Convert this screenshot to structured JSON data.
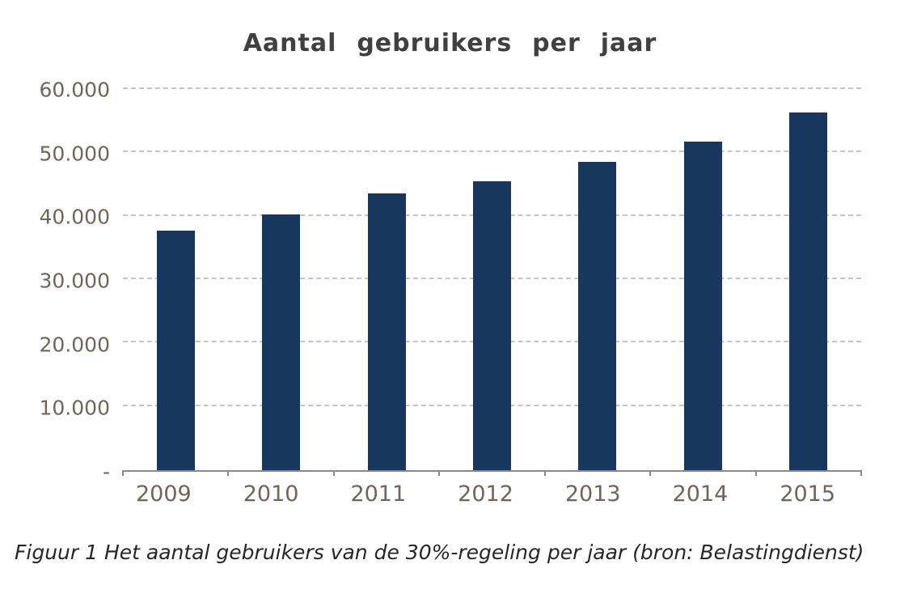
{
  "chart_data": {
    "type": "bar",
    "title": "Aantal gebruikers per jaar",
    "categories": [
      "2009",
      "2010",
      "2011",
      "2012",
      "2013",
      "2014",
      "2015"
    ],
    "values": [
      37800,
      40300,
      43700,
      45600,
      48700,
      51800,
      56400
    ],
    "xlabel": "",
    "ylabel": "",
    "ylim": [
      0,
      60000
    ],
    "ytick_interval": 10000,
    "ytick_labels": [
      "-",
      "10.000",
      "20.000",
      "30.000",
      "40.000",
      "50.000",
      "60.000"
    ],
    "grid": "horizontal-dashed",
    "legend_position": "none",
    "bar_color": "#17375E"
  },
  "caption": "Figuur 1 Het aantal gebruikers van de 30%-regeling per jaar (bron: Belastingdienst)",
  "colors": {
    "bar": "#17375E",
    "title_text": "#404040",
    "tick_text": "#6e655c",
    "gridline": "#c9c4be",
    "axis_line": "#8a8a8a",
    "caption_text": "#262626",
    "background": "#ffffff"
  }
}
